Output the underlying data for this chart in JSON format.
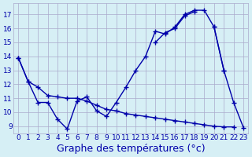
{
  "background_color": "#d6eff5",
  "grid_color": "#aaaacc",
  "line_color": "#0000aa",
  "xlabel": "Graphe des températures (°c)",
  "xlabel_fontsize": 9,
  "xlim": [
    -0.5,
    23.5
  ],
  "ylim": [
    8.5,
    17.8
  ],
  "yticks": [
    9,
    10,
    11,
    12,
    13,
    14,
    15,
    16,
    17
  ],
  "xticks": [
    0,
    1,
    2,
    3,
    4,
    5,
    6,
    7,
    8,
    9,
    10,
    11,
    12,
    13,
    14,
    15,
    16,
    17,
    18,
    19,
    20,
    21,
    22,
    23
  ],
  "tick_fontsize": 6.5,
  "series1_x": [
    0,
    1,
    2,
    3,
    4,
    5,
    6,
    7,
    8,
    9,
    10,
    11,
    12,
    13,
    14,
    15,
    16,
    17,
    18,
    19,
    20,
    21
  ],
  "series1_y": [
    13.9,
    12.2,
    10.7,
    10.7,
    9.5,
    8.8,
    10.8,
    11.1,
    10.1,
    9.7,
    10.7,
    11.8,
    13.0,
    14.0,
    15.8,
    15.6,
    16.1,
    17.0,
    17.3,
    17.3,
    16.1,
    13.0
  ],
  "series2_x": [
    14,
    15,
    16,
    17,
    18
  ],
  "series2_y": [
    15.0,
    15.7,
    16.0,
    16.9,
    17.2
  ],
  "series3_x": [
    0,
    1,
    2,
    3,
    4,
    5,
    6,
    7,
    8,
    9,
    10,
    11,
    12,
    13,
    14,
    15,
    16,
    17,
    18,
    19,
    20,
    21,
    22
  ],
  "series3_y": [
    13.9,
    12.2,
    11.8,
    11.2,
    11.1,
    11.0,
    11.0,
    10.8,
    10.5,
    10.2,
    10.1,
    9.9,
    9.8,
    9.7,
    9.6,
    9.5,
    9.4,
    9.3,
    9.2,
    9.1,
    9.0,
    8.95,
    8.95
  ],
  "series4_x": [
    20,
    21,
    22,
    23
  ],
  "series4_y": [
    16.1,
    13.0,
    10.7,
    8.9
  ]
}
